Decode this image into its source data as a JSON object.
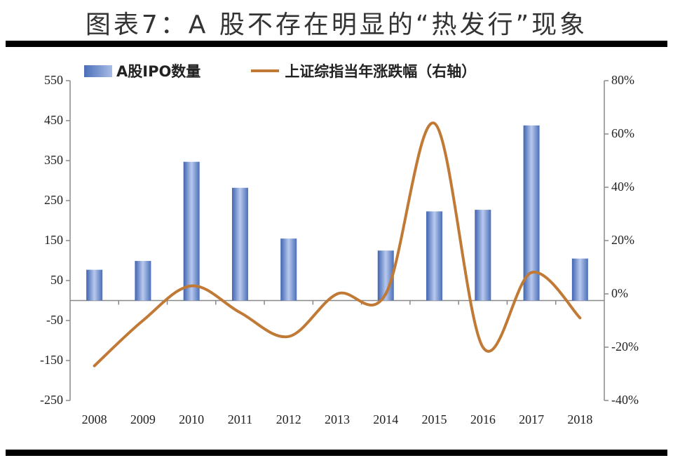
{
  "title": "图表7：A 股不存在明显的“热发行”现象",
  "legend": {
    "bar_label": "A股IPO数量",
    "line_label": "上证综指当年涨跌幅（右轴）"
  },
  "colors": {
    "bar": "#5a7dc4",
    "bar_light": "#b3c4ea",
    "line": "#c07a35",
    "axis": "#888888"
  },
  "chart_data": {
    "type": "bar",
    "title": "图表7：A 股不存在明显的“热发行”现象",
    "categories": [
      "2008",
      "2009",
      "2010",
      "2011",
      "2012",
      "2013",
      "2014",
      "2015",
      "2016",
      "2017",
      "2018"
    ],
    "series": [
      {
        "name": "A股IPO数量",
        "type": "bar",
        "axis": "left",
        "values": [
          77,
          99,
          347,
          282,
          155,
          0,
          125,
          223,
          227,
          438,
          105
        ]
      },
      {
        "name": "上证综指当年涨跌幅（右轴）",
        "type": "line",
        "axis": "right",
        "unit": "%",
        "values": [
          -27,
          -10,
          3,
          -7,
          -16,
          0,
          0,
          64,
          -20,
          8,
          -9
        ]
      }
    ],
    "left_axis": {
      "ylim": [
        -250,
        550
      ],
      "ticks": [
        "550",
        "450",
        "350",
        "250",
        "150",
        "50",
        "-50",
        "-150",
        "-250"
      ]
    },
    "right_axis": {
      "ylim": [
        -40,
        80
      ],
      "ticks": [
        "80%",
        "60%",
        "40%",
        "20%",
        "0%",
        "-20%",
        "-40%"
      ]
    },
    "xlabel": "",
    "ylabel": "",
    "legend_position": "top",
    "grid": false
  }
}
